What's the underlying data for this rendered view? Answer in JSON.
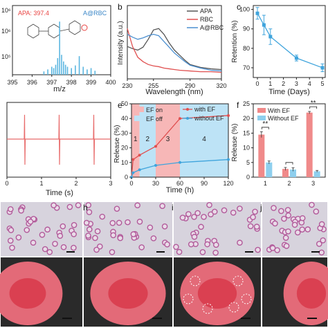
{
  "panels": {
    "a": {
      "letter": "",
      "annotation": "APA: 397.4",
      "legend": "A@RBC",
      "xlabel": "m/z",
      "xticks": [
        "395",
        "396",
        "397",
        "398",
        "399",
        "400"
      ],
      "yticks": [
        "10⁶",
        "10⁶",
        "10⁵"
      ]
    },
    "b": {
      "letter": "b",
      "xlabel": "Wavelength (nm)",
      "ylabel": "Intensity (a.u.)",
      "xticks": [
        "230",
        "255",
        "290",
        "320"
      ]
    },
    "c": {
      "letter": "c",
      "xlabel": "Time (Days)",
      "ylabel": "Retention (%)",
      "xticks": [
        "0",
        "1",
        "2",
        "3",
        "4",
        "5"
      ],
      "yticks": [
        "100",
        "90",
        "80",
        "70"
      ]
    },
    "d": {
      "letter": "",
      "xlabel": "Time (s)",
      "xticks": [
        "0",
        "1",
        "2",
        "3"
      ]
    },
    "e": {
      "letter": "e",
      "xlabel": "Time (h)",
      "ylabel": "Release (%)",
      "xticks": [
        "0",
        "30",
        "60",
        "90",
        "120"
      ],
      "yticks": [
        "0",
        "10",
        "20",
        "30",
        "40",
        "50"
      ],
      "legend_on": "EF on",
      "legend_off": "EF off",
      "stage_labels": [
        "1",
        "2",
        "3",
        "4"
      ]
    },
    "f": {
      "letter": "f",
      "ylabel": "Release (%)",
      "xticks": [
        "1",
        "2",
        "3"
      ],
      "yticks": [
        "0",
        "5",
        "10",
        "15",
        "20",
        "25"
      ],
      "sig": [
        "**",
        "**"
      ]
    },
    "g": {
      "letters": [
        "h",
        "i",
        "j"
      ]
    }
  },
  "chart_data": [
    {
      "type": "bar",
      "panel": "a",
      "xlabel": "m/z",
      "xlim": [
        395,
        400
      ],
      "ylim": [
        0,
        1
      ],
      "annotations": [
        "APA: 397.4"
      ],
      "legend": [
        "A@RBC"
      ],
      "colors": {
        "bars": "#5bb6e0",
        "label": "#e8403f",
        "legend": "#3a86c7"
      },
      "x": [
        396.6,
        396.8,
        397.0,
        397.1,
        397.2,
        397.3,
        397.4,
        397.5,
        397.6,
        397.7,
        397.8,
        398.0,
        398.2,
        398.4,
        398.6,
        398.8,
        399.0,
        399.2
      ],
      "values": [
        0.05,
        0.08,
        0.12,
        0.1,
        0.15,
        0.25,
        0.8,
        0.3,
        0.2,
        0.15,
        0.12,
        0.1,
        0.14,
        0.28,
        0.12,
        0.08,
        0.1,
        0.06
      ]
    },
    {
      "type": "line",
      "panel": "b",
      "xlabel": "Wavelength (nm)",
      "ylabel": "Intensity (a.u.)",
      "xlim": [
        230,
        320
      ],
      "ylim": [
        0,
        1
      ],
      "series": [
        {
          "name": "APA",
          "color": "#555555",
          "x": [
            230,
            235,
            240,
            245,
            250,
            255,
            260,
            265,
            270,
            275,
            280,
            285,
            290,
            300,
            310,
            320
          ],
          "values": [
            0.45,
            0.42,
            0.4,
            0.44,
            0.55,
            0.68,
            0.7,
            0.62,
            0.5,
            0.4,
            0.33,
            0.26,
            0.2,
            0.16,
            0.14,
            0.13
          ]
        },
        {
          "name": "RBC",
          "color": "#e05050",
          "x": [
            230,
            235,
            240,
            245,
            250,
            255,
            260,
            265,
            270,
            275,
            280,
            290,
            300,
            310,
            320
          ],
          "values": [
            0.7,
            0.45,
            0.3,
            0.24,
            0.2,
            0.18,
            0.17,
            0.15,
            0.14,
            0.13,
            0.12,
            0.11,
            0.1,
            0.1,
            0.09
          ]
        },
        {
          "name": "A@RBC",
          "color": "#4b8fd0",
          "x": [
            230,
            235,
            240,
            245,
            250,
            255,
            260,
            265,
            270,
            275,
            280,
            285,
            290,
            300,
            310,
            320
          ],
          "values": [
            0.62,
            0.58,
            0.55,
            0.57,
            0.6,
            0.62,
            0.6,
            0.52,
            0.44,
            0.36,
            0.3,
            0.24,
            0.19,
            0.15,
            0.12,
            0.11
          ]
        }
      ]
    },
    {
      "type": "line",
      "panel": "c",
      "xlabel": "Time (Days)",
      "ylabel": "Retention (%)",
      "xlim": [
        0,
        5
      ],
      "ylim": [
        65,
        102
      ],
      "series": [
        {
          "color": "#3fa4dc",
          "x": [
            0,
            0.5,
            1,
            3,
            5
          ],
          "values": [
            98,
            92,
            86,
            75,
            70
          ],
          "errors": [
            3,
            5,
            4,
            1.5,
            2
          ]
        }
      ]
    },
    {
      "type": "line",
      "panel": "d",
      "xlabel": "Time (s)",
      "xlim": [
        0,
        3
      ],
      "ylim": [
        -1,
        1
      ],
      "series": [
        {
          "color": "#e86b6b",
          "x": [
            0,
            0.5,
            0.51,
            0.52,
            0.53,
            1.5,
            1.51,
            1.52,
            1.53,
            2.5,
            2.51,
            2.52,
            2.53,
            3
          ],
          "values": [
            0,
            0,
            0.9,
            -0.95,
            0,
            0,
            0.9,
            -0.95,
            0,
            0,
            0.9,
            -0.95,
            0,
            0
          ]
        }
      ]
    },
    {
      "type": "line",
      "panel": "e",
      "xlabel": "Time (h)",
      "ylabel": "Release (%)",
      "xlim": [
        0,
        120
      ],
      "ylim": [
        0,
        50
      ],
      "shaded": [
        {
          "from": 0,
          "to": 10,
          "state": "on"
        },
        {
          "from": 10,
          "to": 30,
          "state": "off"
        },
        {
          "from": 30,
          "to": 60,
          "state": "on"
        },
        {
          "from": 60,
          "to": 120,
          "state": "off"
        }
      ],
      "series": [
        {
          "name": "with EF",
          "color": "#e05050",
          "x": [
            0,
            2,
            10,
            30,
            60,
            120
          ],
          "values": [
            0,
            12,
            15,
            21,
            40,
            42
          ]
        },
        {
          "name": "without EF",
          "color": "#3fa4dc",
          "x": [
            0,
            2,
            10,
            30,
            60,
            120
          ],
          "values": [
            0,
            3,
            5,
            8,
            10,
            12
          ]
        }
      ]
    },
    {
      "type": "bar",
      "panel": "f",
      "ylabel": "Release (%)",
      "ylim": [
        0,
        25
      ],
      "categories": [
        "1",
        "2",
        "3"
      ],
      "series": [
        {
          "name": "With EF",
          "color": "#f08a8a",
          "values": [
            14.5,
            2.8,
            22
          ],
          "errors": [
            1,
            0.5,
            0.4
          ]
        },
        {
          "name": "Without EF",
          "color": "#8ecfee",
          "values": [
            5,
            2.6,
            2
          ],
          "errors": [
            0.5,
            0.6,
            0.3
          ]
        }
      ]
    }
  ],
  "colors": {
    "ef_on": "#f7b7b7",
    "ef_off": "#bde3f6",
    "blood_bg": "#d7d3dd",
    "cell_ring": "#b25a9a",
    "sem_dark": "#2a2a2a",
    "rbc_red": "#d8384a"
  }
}
